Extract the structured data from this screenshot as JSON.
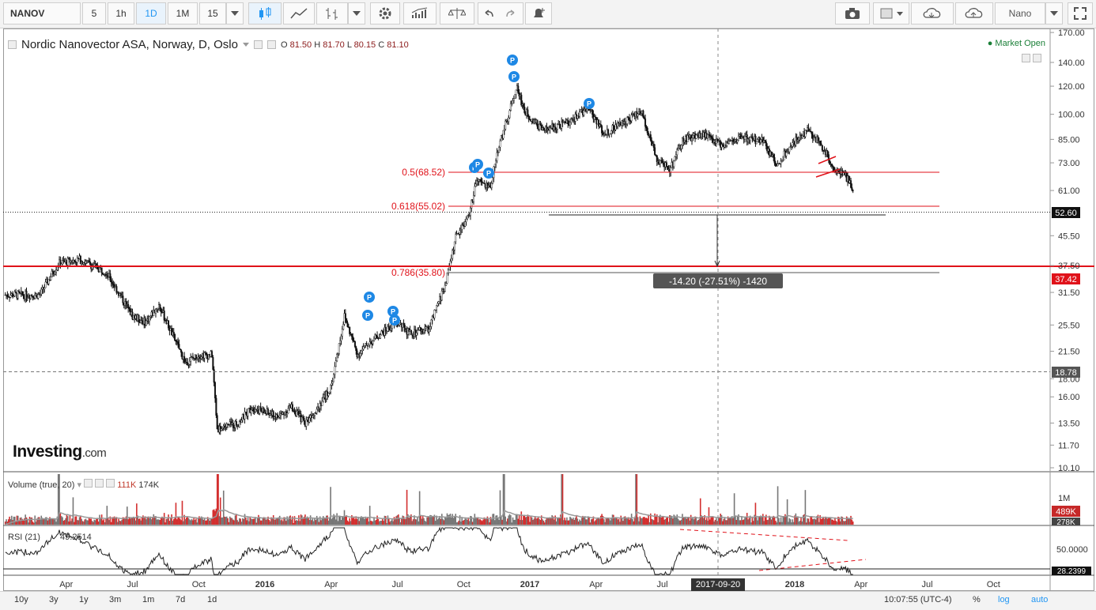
{
  "toolbar": {
    "symbol": "NANOV",
    "intervals": [
      "5",
      "1h",
      "1D",
      "1M",
      "15"
    ],
    "selected_interval": "1D",
    "theme": "Nano"
  },
  "legend": {
    "title": "Nordic Nanovector ASA, Norway, D, Oslo",
    "o_label": "O",
    "o": "81.50",
    "h_label": "H",
    "h": "81.70",
    "l_label": "L",
    "l": "80.15",
    "c_label": "C",
    "c": "81.10",
    "market_status": "Market Open"
  },
  "brand": {
    "name": "Investing",
    "suffix": ".com"
  },
  "fib_levels": [
    {
      "label": "0.5(68.52)",
      "price": 68.52
    },
    {
      "label": "0.618(55.02)",
      "price": 55.02
    },
    {
      "label": "0.786(35.80)",
      "price": 35.8
    }
  ],
  "measure_label": "-14.20 (-27.51%) -1420",
  "crosshair_date": "2017-09-20",
  "price_labels": {
    "current": "52.60",
    "red_line": "37.42",
    "dotted_line": "18.78"
  },
  "volume": {
    "legend": "Volume (true, 20)",
    "v1": "111K",
    "v2": "174K",
    "tick": "1M",
    "current": "489K",
    "ma": "278K"
  },
  "rsi": {
    "legend": "RSI (21)",
    "value": "49.2514",
    "tick": "50.0000",
    "current": "28.2399"
  },
  "bottom": {
    "ranges": [
      "10y",
      "3y",
      "1y",
      "3m",
      "1m",
      "7d",
      "1d"
    ],
    "time": "10:07:55 (UTC-4)",
    "pct": "%",
    "log": "log",
    "auto": "auto"
  },
  "colors": {
    "accent": "#2196f3",
    "red_line": "#e0121a",
    "fib": "#e0121a",
    "volume_bar": "#d32f2f",
    "market_open": "#1a7f37"
  },
  "chart_data": {
    "type": "candlestick",
    "x_ticks": [
      "Apr",
      "Jul",
      "Oct",
      "2016",
      "Apr",
      "Jul",
      "Oct",
      "2017",
      "Apr",
      "Jul",
      "Oct",
      "2018",
      "Apr",
      "Jul",
      "Oct"
    ],
    "y_ticks": [
      "170.00",
      "140.00",
      "120.00",
      "100.00",
      "85.00",
      "73.00",
      "61.00",
      "52.60",
      "45.50",
      "37.50",
      "31.50",
      "25.50",
      "21.50",
      "18.00",
      "16.00",
      "13.50",
      "11.70",
      "10.10"
    ],
    "y_scale": "log",
    "ylim": [
      10.1,
      170
    ],
    "price_path": [
      [
        2015.15,
        31
      ],
      [
        2015.22,
        38
      ],
      [
        2015.3,
        39
      ],
      [
        2015.4,
        36
      ],
      [
        2015.5,
        27
      ],
      [
        2015.55,
        26
      ],
      [
        2015.6,
        29
      ],
      [
        2015.65,
        24
      ],
      [
        2015.7,
        20
      ],
      [
        2015.75,
        21
      ],
      [
        2015.8,
        21
      ],
      [
        2015.82,
        13
      ],
      [
        2015.9,
        13.5
      ],
      [
        2015.95,
        15
      ],
      [
        2016.0,
        14.5
      ],
      [
        2016.05,
        14
      ],
      [
        2016.1,
        15
      ],
      [
        2016.15,
        13.5
      ],
      [
        2016.2,
        15
      ],
      [
        2016.25,
        17
      ],
      [
        2016.3,
        27
      ],
      [
        2016.35,
        21
      ],
      [
        2016.4,
        23
      ],
      [
        2016.5,
        26
      ],
      [
        2016.55,
        24
      ],
      [
        2016.62,
        25
      ],
      [
        2016.68,
        33
      ],
      [
        2016.72,
        45
      ],
      [
        2016.77,
        52
      ],
      [
        2016.8,
        65
      ],
      [
        2016.85,
        62
      ],
      [
        2016.88,
        80
      ],
      [
        2016.92,
        100
      ],
      [
        2016.95,
        120
      ],
      [
        2016.98,
        102
      ],
      [
        2017.05,
        90
      ],
      [
        2017.15,
        95
      ],
      [
        2017.22,
        105
      ],
      [
        2017.28,
        88
      ],
      [
        2017.35,
        95
      ],
      [
        2017.42,
        102
      ],
      [
        2017.48,
        75
      ],
      [
        2017.53,
        70
      ],
      [
        2017.58,
        85
      ],
      [
        2017.65,
        88
      ],
      [
        2017.72,
        82
      ],
      [
        2017.8,
        86
      ],
      [
        2017.88,
        84
      ],
      [
        2017.93,
        72
      ],
      [
        2018.0,
        84
      ],
      [
        2018.05,
        90
      ],
      [
        2018.1,
        82
      ],
      [
        2018.15,
        70
      ],
      [
        2018.2,
        66
      ],
      [
        2018.25,
        52.6
      ]
    ],
    "volume_spikes": [
      [
        2015.22,
        "tall"
      ],
      [
        2015.82,
        "tall"
      ],
      [
        2016.9,
        "tall"
      ],
      [
        2017.12,
        "tall"
      ],
      [
        2017.4,
        "tall"
      ]
    ]
  }
}
